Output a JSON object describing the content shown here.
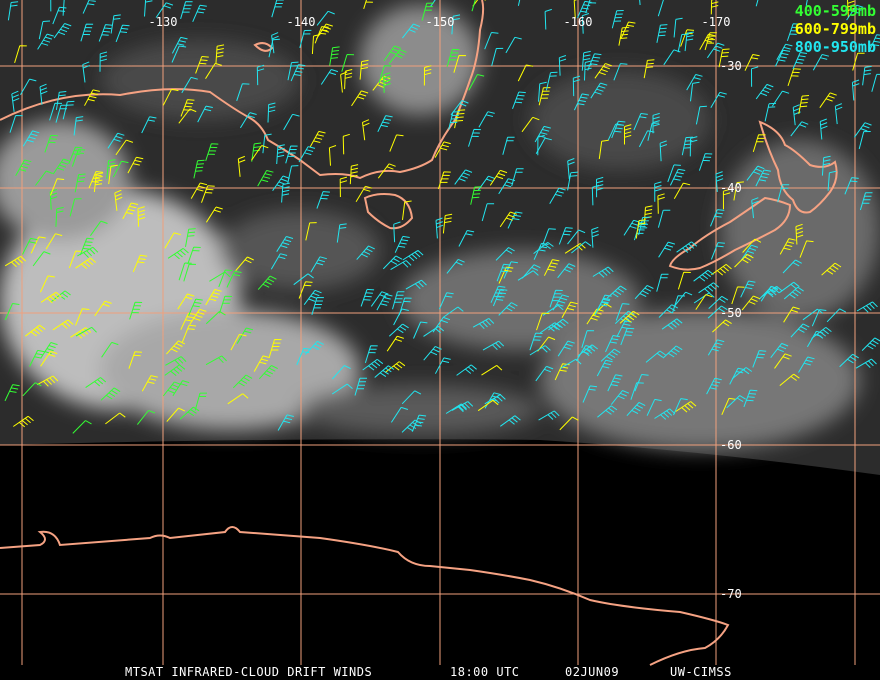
{
  "legend": [
    {
      "label": "400-599mb",
      "color": "#33ff33"
    },
    {
      "label": "600-799mb",
      "color": "#ffff00"
    },
    {
      "label": "800-950mb",
      "color": "#22e6f0"
    }
  ],
  "longitude_labels": [
    "-130",
    "-140",
    "-150",
    "-160",
    "-170"
  ],
  "latitude_labels": [
    "-30",
    "-40",
    "-50",
    "-60",
    "-70"
  ],
  "footer": [
    "MTSAT INFRARED-CLOUD DRIFT WINDS",
    "18:00 UTC",
    "02JUN09",
    "UW-CIMSS"
  ]
}
